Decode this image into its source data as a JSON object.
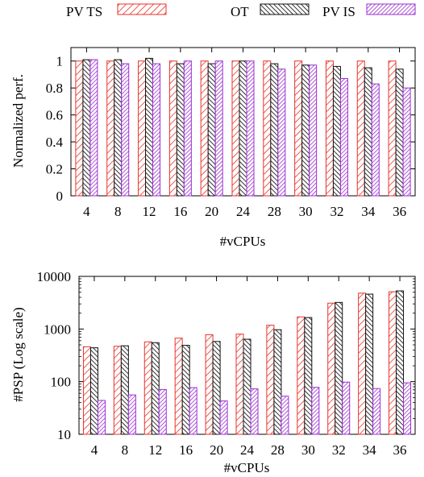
{
  "legend": {
    "items": [
      {
        "label": "PV TS",
        "pattern": "diag-red"
      },
      {
        "label": "OT",
        "pattern": "diag-black"
      },
      {
        "label": "PV IS",
        "pattern": "diag-purple"
      }
    ]
  },
  "colors": {
    "pv_ts": "#e8322a",
    "ot": "#111111",
    "pv_is": "#9b2fd1"
  },
  "chart_data": [
    {
      "type": "bar",
      "categories": [
        "4",
        "8",
        "12",
        "16",
        "20",
        "24",
        "28",
        "30",
        "32",
        "34",
        "36"
      ],
      "series": [
        {
          "name": "PV TS",
          "values": [
            1.0,
            1.0,
            1.0,
            1.0,
            1.0,
            1.0,
            1.0,
            1.0,
            1.0,
            1.0,
            1.0
          ]
        },
        {
          "name": "OT",
          "values": [
            1.01,
            1.01,
            1.02,
            0.98,
            0.98,
            1.0,
            0.98,
            0.97,
            0.96,
            0.95,
            0.94
          ]
        },
        {
          "name": "PV IS",
          "values": [
            1.01,
            0.98,
            0.98,
            1.0,
            1.0,
            1.0,
            0.94,
            0.97,
            0.87,
            0.83,
            0.8
          ]
        }
      ],
      "xlabel": "#vCPUs",
      "ylabel": "Normalized perf.",
      "ylim": [
        0,
        1.1
      ],
      "yticks": [
        "0",
        "0.2",
        "0.4",
        "0.6",
        "0.8",
        "1"
      ],
      "grid": false,
      "scale": "linear"
    },
    {
      "type": "bar",
      "categories": [
        "4",
        "8",
        "12",
        "16",
        "20",
        "24",
        "28",
        "30",
        "32",
        "34",
        "36"
      ],
      "series": [
        {
          "name": "PV TS",
          "values": [
            460,
            470,
            570,
            670,
            780,
            800,
            1180,
            1700,
            3100,
            4800,
            5100
          ]
        },
        {
          "name": "OT",
          "values": [
            440,
            480,
            550,
            490,
            580,
            640,
            970,
            1650,
            3200,
            4600,
            5300
          ]
        },
        {
          "name": "PV IS",
          "values": [
            44,
            56,
            71,
            77,
            43,
            73,
            53,
            78,
            98,
            74,
            95
          ]
        }
      ],
      "xlabel": "#vCPUs",
      "ylabel": "#PSP (Log scale)",
      "ylim": [
        10,
        10000
      ],
      "yticks": [
        "10",
        "100",
        "1000",
        "10000"
      ],
      "grid": false,
      "scale": "log"
    }
  ]
}
